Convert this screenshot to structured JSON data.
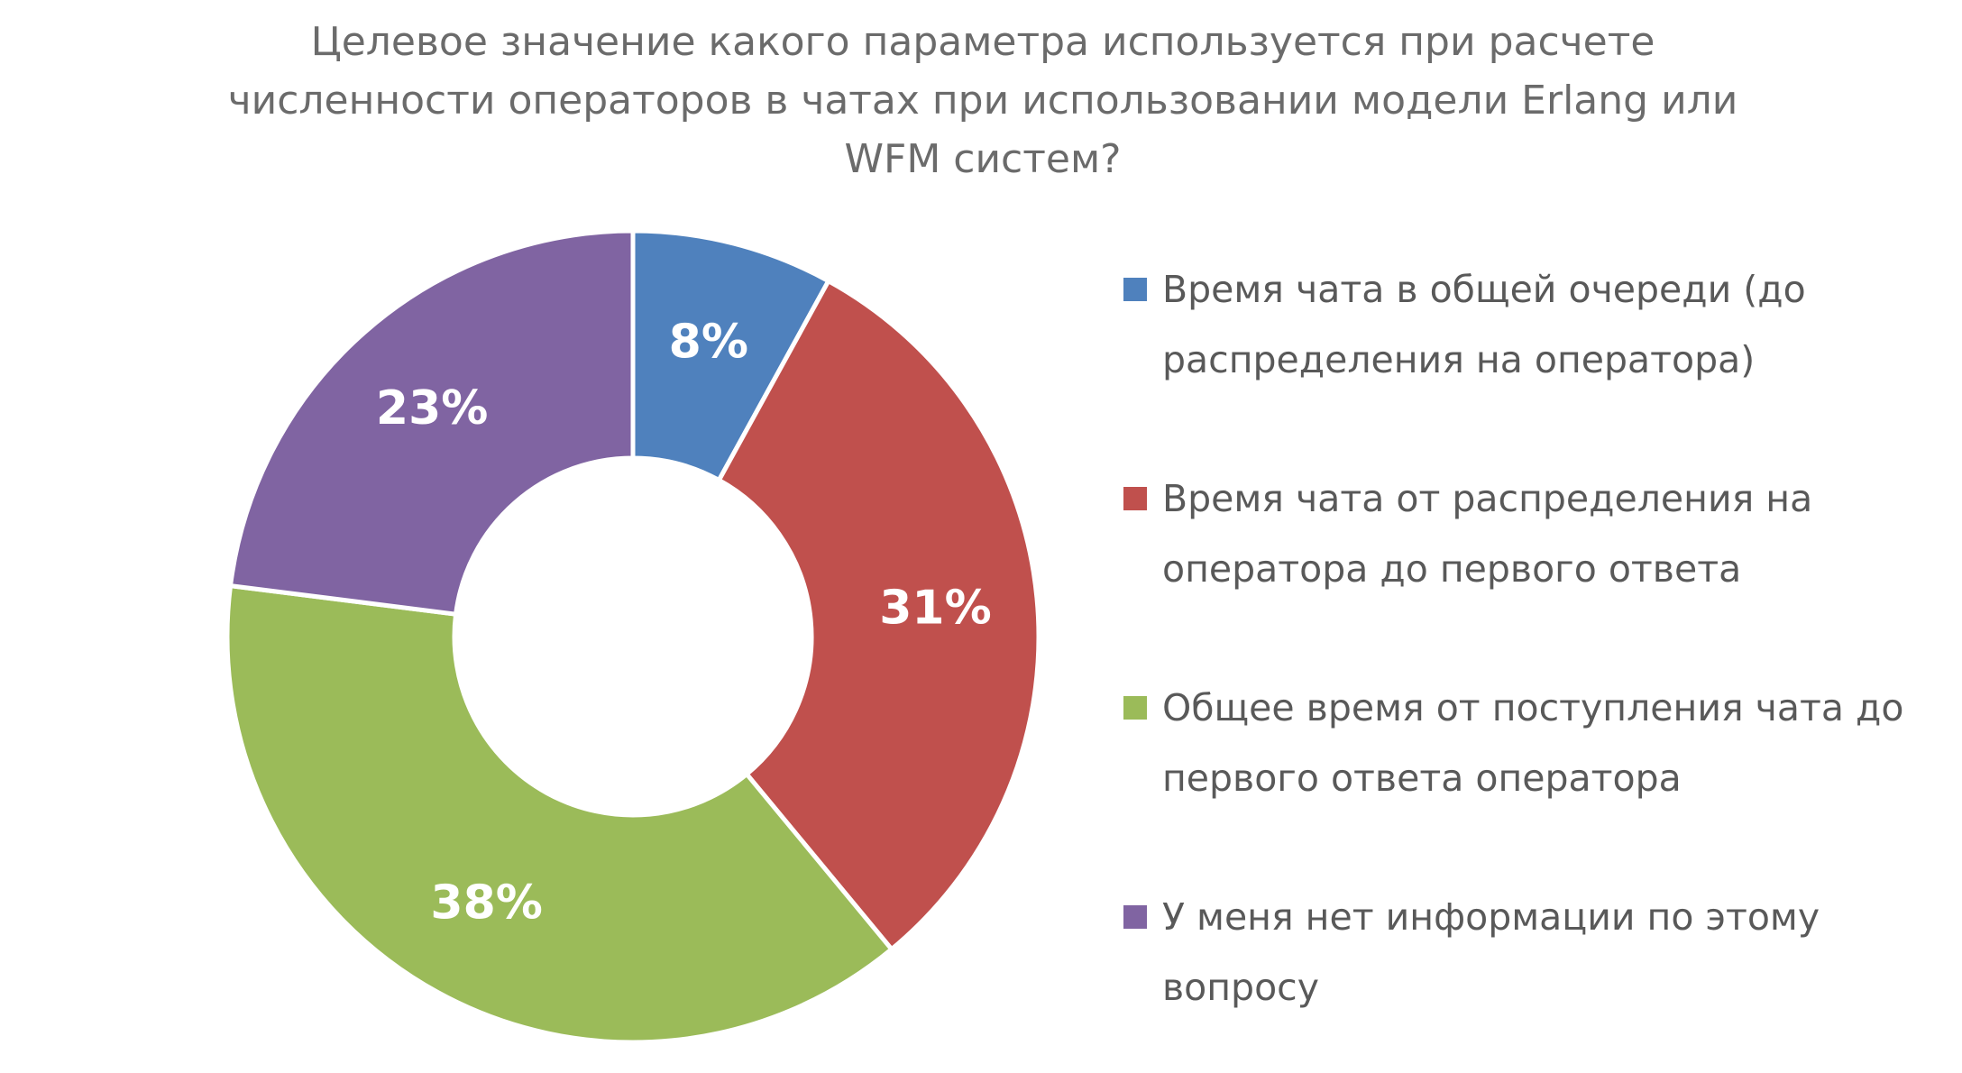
{
  "header": {
    "title_wrapped": "Целевое значение какого параметра используется при расчете\nчисленности операторов в чатах при использовании модели Erlang или\nWFM систем?"
  },
  "legend": {
    "items": [
      {
        "label_wrapped": "Время чата в общей очереди (до\nраспределения на оператора)",
        "color": "#4F81BD",
        "marker": "square"
      },
      {
        "label_wrapped": "Время чата от распределения на\nоператора до первого ответа",
        "color": "#C0504D",
        "marker": "square"
      },
      {
        "label_wrapped": "Общее время от поступления чата до\nпервого ответа оператора",
        "color": "#9BBB59",
        "marker": "square"
      },
      {
        "label_wrapped": "У меня нет информации по этому\nвопросу",
        "color": "#8064A2",
        "marker": "square"
      }
    ]
  },
  "chart_data": {
    "type": "pie",
    "subtype": "donut",
    "title": "Целевое значение какого параметра используется при расчете численности операторов в чатах при использовании модели Erlang или WFM систем?",
    "categories": [
      "Время чата в общей очереди (до распределения на оператора)",
      "Время чата от распределения на оператора до первого ответа",
      "Общее время от поступления чата до первого ответа оператора",
      "У меня нет информации по этому вопросу"
    ],
    "values": [
      8,
      31,
      38,
      23
    ],
    "data_labels": [
      "8%",
      "31%",
      "38%",
      "23%"
    ],
    "colors": [
      "#4F81BD",
      "#C0504D",
      "#9BBB59",
      "#8064A2"
    ],
    "start_angle_deg": 0,
    "direction": "clockwise",
    "inner_radius_ratio": 0.44,
    "slice_separator_color": "#FFFFFF",
    "data_label_color": "#FFFFFF",
    "title_color": "#6B6B6B",
    "legend_text_color": "#595959",
    "legend_position": "right",
    "background": "#FFFFFF"
  }
}
